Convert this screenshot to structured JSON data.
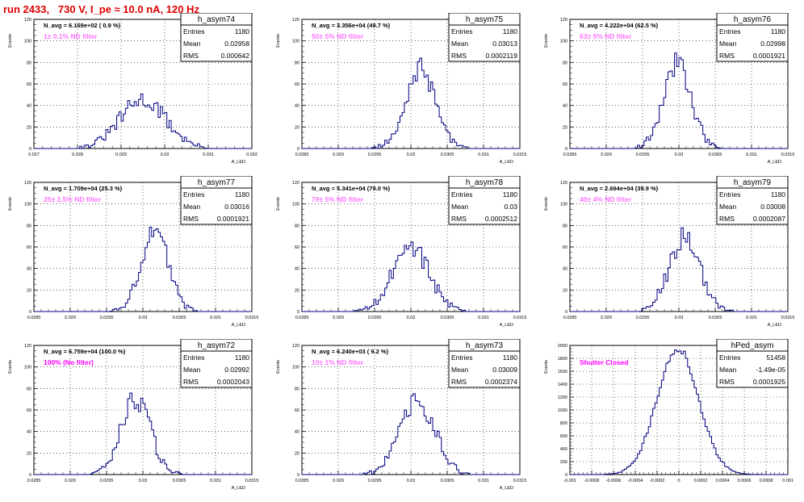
{
  "page_title": "run 2433,   730 V, I_pe ≈ 10.0 nA, 120 Hz",
  "stat_labels": {
    "entries": "Entries",
    "mean": "Mean",
    "rms": "RMS"
  },
  "colors": {
    "title": "#e00000",
    "histogram": "#000080",
    "annotation": "#ff00ff",
    "grid": "#000000"
  },
  "chart_data": [
    {
      "type": "bar",
      "name": "h_asym74",
      "nav_text": "N_avg = 6.169e+02 ( 0.9 %)",
      "filter_label": "1± 0.1% ND filter",
      "filter_label_faded": true,
      "entries": "1180",
      "mean": "0.02958",
      "rms": "0.000642",
      "xlabel": "A_LED",
      "ylabel": "Events",
      "ylim": [
        0,
        120
      ],
      "yticks": [
        0,
        20,
        40,
        60,
        80,
        100,
        120
      ],
      "xlim": [
        0.027,
        0.0325
      ],
      "xticks": [
        "0.027",
        "0.028",
        "0.029",
        "0.03",
        "0.031",
        "0.032"
      ],
      "grid": true,
      "peak_x": 0.02975,
      "peak_y": 45,
      "width_x": 0.00058
    },
    {
      "type": "bar",
      "name": "h_asym75",
      "nav_text": "N_avg = 3.356e+04 (49.7 %)",
      "filter_label": "50± 5% ND filter",
      "filter_label_faded": true,
      "entries": "1180",
      "mean": "0.03013",
      "rms": "0.0002119",
      "xlabel": "A_LED",
      "ylabel": "Events",
      "ylim": [
        0,
        120
      ],
      "yticks": [
        0,
        20,
        40,
        60,
        80,
        100,
        120
      ],
      "xlim": [
        0.0285,
        0.0315
      ],
      "xticks": [
        "0.0285",
        "0.029",
        "0.0295",
        "0.03",
        "0.0305",
        "0.031",
        "0.0315"
      ],
      "grid": true,
      "peak_x": 0.03013,
      "peak_y": 73,
      "width_x": 0.00021
    },
    {
      "type": "bar",
      "name": "h_asym76",
      "nav_text": "N_avg = 4.222e+04 (62.5 %)",
      "filter_label": "63± 5% ND filter",
      "filter_label_faded": true,
      "entries": "1180",
      "mean": "0.02998",
      "rms": "0.0001921",
      "xlabel": "A_LED",
      "ylabel": "Events",
      "ylim": [
        0,
        120
      ],
      "yticks": [
        0,
        20,
        40,
        60,
        80,
        100,
        120
      ],
      "xlim": [
        0.0285,
        0.0315
      ],
      "xticks": [
        "0.0285",
        "0.029",
        "0.0295",
        "0.03",
        "0.0305",
        "0.031",
        "0.0315"
      ],
      "grid": true,
      "peak_x": 0.02998,
      "peak_y": 80,
      "width_x": 0.00019
    },
    {
      "type": "bar",
      "name": "h_asym77",
      "nav_text": "N_avg = 1.709e+04 (25.3 %)",
      "filter_label": "25± 2.5% ND filter",
      "filter_label_faded": true,
      "entries": "1180",
      "mean": "0.03016",
      "rms": "0.0001921",
      "xlabel": "A_LED",
      "ylabel": "Events",
      "ylim": [
        0,
        120
      ],
      "yticks": [
        0,
        20,
        40,
        60,
        80,
        100,
        120
      ],
      "xlim": [
        0.0285,
        0.0315
      ],
      "xticks": [
        "0.0285",
        "0.029",
        "0.0295",
        "0.03",
        "0.0305",
        "0.031",
        "0.0315"
      ],
      "grid": true,
      "peak_x": 0.03016,
      "peak_y": 75,
      "width_x": 0.00019
    },
    {
      "type": "bar",
      "name": "h_asym78",
      "nav_text": "N_avg = 5.341e+04 (79.0 %)",
      "filter_label": "79± 5% ND filter",
      "filter_label_faded": true,
      "entries": "1180",
      "mean": "0.03",
      "rms": "0.0002512",
      "xlabel": "A_LED",
      "ylabel": "Events",
      "ylim": [
        0,
        120
      ],
      "yticks": [
        0,
        20,
        40,
        60,
        80,
        100,
        120
      ],
      "xlim": [
        0.0285,
        0.0315
      ],
      "xticks": [
        "0.0285",
        "0.029",
        "0.0295",
        "0.03",
        "0.0305",
        "0.031",
        "0.0315"
      ],
      "grid": true,
      "peak_x": 0.03,
      "peak_y": 60,
      "width_x": 0.00025
    },
    {
      "type": "bar",
      "name": "h_asym79",
      "nav_text": "N_avg = 2.694e+04 (39.9 %)",
      "filter_label": "40± 4% ND filter",
      "filter_label_faded": true,
      "entries": "1180",
      "mean": "0.03008",
      "rms": "0.0002087",
      "xlabel": "A_LED",
      "ylabel": "Events",
      "ylim": [
        0,
        120
      ],
      "yticks": [
        0,
        20,
        40,
        60,
        80,
        100,
        120
      ],
      "xlim": [
        0.0285,
        0.0315
      ],
      "xticks": [
        "0.0285",
        "0.029",
        "0.0295",
        "0.03",
        "0.0305",
        "0.031",
        "0.0315"
      ],
      "grid": true,
      "peak_x": 0.03008,
      "peak_y": 70,
      "width_x": 0.00021
    },
    {
      "type": "bar",
      "name": "h_asym72",
      "nav_text": "N_avg = 6.759e+04 (100.0 %)",
      "filter_label": "100% (No filter)",
      "filter_label_faded": false,
      "entries": "1180",
      "mean": "0.02992",
      "rms": "0.0002043",
      "xlabel": "A_LED",
      "ylabel": "Events",
      "ylim": [
        0,
        120
      ],
      "yticks": [
        0,
        20,
        40,
        60,
        80,
        100,
        120
      ],
      "xlim": [
        0.0285,
        0.0315
      ],
      "xticks": [
        "0.0285",
        "0.029",
        "0.0295",
        "0.03",
        "0.0305",
        "0.031",
        "0.0315"
      ],
      "grid": true,
      "peak_x": 0.0299,
      "peak_y": 70,
      "width_x": 0.0002
    },
    {
      "type": "bar",
      "name": "h_asym73",
      "nav_text": "N_avg = 6.240e+03 ( 9.2 %)",
      "filter_label": "10± 1% ND filter",
      "filter_label_faded": true,
      "entries": "1180",
      "mean": "0.03009",
      "rms": "0.0002374",
      "xlabel": "A_LED",
      "ylabel": "Events",
      "ylim": [
        0,
        120
      ],
      "yticks": [
        0,
        20,
        40,
        60,
        80,
        100,
        120
      ],
      "xlim": [
        0.0285,
        0.0315
      ],
      "xticks": [
        "0.0285",
        "0.029",
        "0.0295",
        "0.03",
        "0.0305",
        "0.031",
        "0.0315"
      ],
      "grid": true,
      "peak_x": 0.03009,
      "peak_y": 68,
      "width_x": 0.00024
    },
    {
      "type": "bar",
      "name": "hPed_asym",
      "nav_text": "",
      "filter_label": "Shutter Closed",
      "filter_label_faded": false,
      "entries": "51458",
      "mean": "-1.49e-05",
      "rms": "0.0001925",
      "xlabel": "",
      "ylabel": "Events",
      "ylim": [
        0,
        2000
      ],
      "yticks": [
        0,
        200,
        400,
        600,
        800,
        1000,
        1200,
        1400,
        1600,
        1800,
        2000
      ],
      "xlim": [
        -0.001,
        0.001
      ],
      "xticks": [
        "-0.001",
        "-0.0008",
        "-0.0006",
        "-0.0004",
        "-0.0002",
        "0",
        "0.0002",
        "0.0004",
        "0.0006",
        "0.0008",
        "0.001"
      ],
      "grid": true,
      "peak_x": -1e-05,
      "peak_y": 1950,
      "width_x": 0.00019
    }
  ]
}
